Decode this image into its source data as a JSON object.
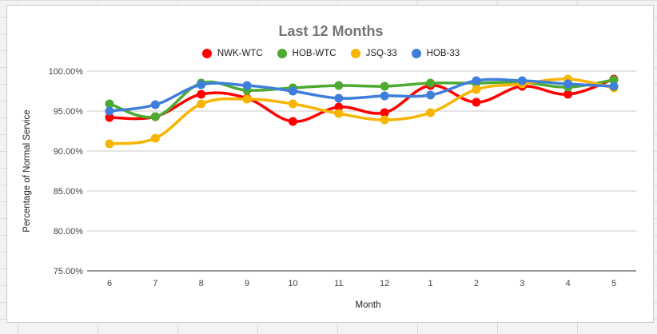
{
  "chart_data": {
    "type": "line",
    "title": "Last 12 Months",
    "xlabel": "Month",
    "ylabel": "Percentage of Normal Service",
    "ylim": [
      75,
      100
    ],
    "y_ticks": [
      75,
      80,
      85,
      90,
      95,
      100
    ],
    "y_tick_labels": [
      "75.00%",
      "80.00%",
      "85.00%",
      "90.00%",
      "95.00%",
      "100.00%"
    ],
    "categories": [
      "6",
      "7",
      "8",
      "9",
      "10",
      "11",
      "12",
      "1",
      "2",
      "3",
      "4",
      "5"
    ],
    "grid": "horizontal",
    "legend_position": "top",
    "series": [
      {
        "name": "NWK-WTC",
        "color": "#ff0000",
        "values": [
          94.2,
          94.3,
          97.1,
          96.6,
          93.7,
          95.5,
          94.8,
          98.2,
          96.1,
          98.1,
          97.1,
          99.0
        ]
      },
      {
        "name": "HOB-WTC",
        "color": "#4caa30",
        "values": [
          95.9,
          94.3,
          98.5,
          97.6,
          97.9,
          98.2,
          98.1,
          98.5,
          98.5,
          98.6,
          98.0,
          98.9
        ]
      },
      {
        "name": "JSQ-33",
        "color": "#f7b500",
        "values": [
          90.9,
          91.6,
          95.9,
          96.5,
          95.9,
          94.7,
          93.9,
          94.8,
          97.7,
          98.4,
          99.0,
          97.9
        ]
      },
      {
        "name": "HOB-33",
        "color": "#3f7fdb",
        "values": [
          95.0,
          95.8,
          98.3,
          98.2,
          97.5,
          96.6,
          96.9,
          97.0,
          98.8,
          98.8,
          98.4,
          98.1
        ]
      }
    ]
  }
}
